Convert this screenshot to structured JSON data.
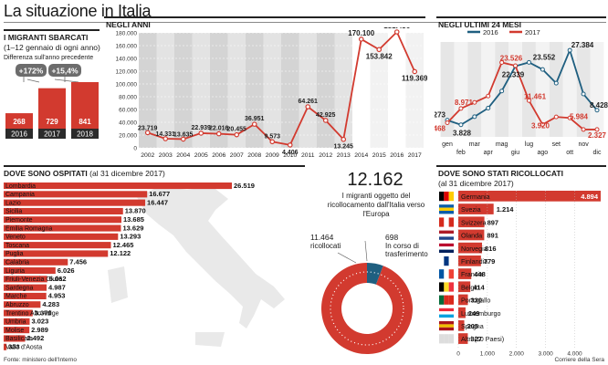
{
  "title": "La situazione in Italia",
  "sources": {
    "left": "Fonte: ministero dell'Interno",
    "right": "Corriere della Sera"
  },
  "colors": {
    "red": "#d23a2f",
    "blue": "#1f5f80",
    "grey": "#c8c8c8",
    "lightgrey": "#e9e9e9",
    "dark": "#2b2b2b"
  },
  "migranti": {
    "heading": "I MIGRANTI SBARCATI",
    "subheading": "(1–12 gennaio di ogni anno)",
    "diff_label": "Differenza sull'anno precedente",
    "diff_badges": [
      "+172%",
      "+15,4%"
    ]
  },
  "negli_anni": {
    "heading": "NEGLI ANNI"
  },
  "ultimi24": {
    "heading": "NEGLI ULTIMI 24 MESI"
  },
  "ospitati": {
    "heading": "DOVE SONO OSPITATI",
    "subheading": "(al 31 dicembre 2017)"
  },
  "ricollocamento": {
    "total": "12.162",
    "caption": "I migranti oggetto del ricollocamento dall'Italia verso l'Europa",
    "left_value": "11.464",
    "left_label": "ricollocati",
    "right_value": "698",
    "right_label": "In corso di trasferimento"
  },
  "ricollocati": {
    "heading": "DOVE SONO STATI RICOLLOCATI",
    "subheading": "(al 31 dicembre 2017)"
  },
  "chart_data": [
    {
      "type": "bar",
      "categories": [
        "2016",
        "2017",
        "2018"
      ],
      "values": [
        268,
        729,
        841
      ],
      "value_labels": [
        "268",
        "729",
        "841"
      ]
    },
    {
      "type": "line",
      "x": [
        "2002",
        "2003",
        "2004",
        "2005",
        "2006",
        "2007",
        "2008",
        "2009",
        "2010",
        "2011",
        "2012",
        "2013",
        "2014",
        "2015",
        "2016",
        "2017"
      ],
      "values": [
        23719,
        14331,
        13635,
        22939,
        22016,
        20455,
        36951,
        9573,
        4406,
        64261,
        42925,
        13245,
        170100,
        153842,
        181436,
        119369
      ],
      "value_labels": [
        "23.719",
        "14.331",
        "13.635",
        "22.939",
        "22.016",
        "20.455",
        "36.951",
        "9.573",
        "4.406",
        "64.261",
        "42.925",
        "13.245",
        "170.100",
        "153.842",
        "181.436",
        "119.369"
      ],
      "y_ticks": [
        "0",
        "20.000",
        "40.000",
        "60.000",
        "80.000",
        "100.000",
        "120.000",
        "140.000",
        "160.000",
        "180.000"
      ],
      "ylim": [
        0,
        180000
      ],
      "grid": true
    },
    {
      "type": "line",
      "categories": [
        "gen",
        "feb",
        "mar",
        "apr",
        "mag",
        "giu",
        "lug",
        "ago",
        "set",
        "ott",
        "nov",
        "dic"
      ],
      "series": [
        {
          "name": "2016",
          "color": "#1f5f80",
          "values": [
            5273,
            3828,
            6400,
            9100,
            14500,
            22339,
            23552,
            21300,
            16975,
            27384,
            13550,
            8428
          ]
        },
        {
          "name": "2017",
          "color": "#d23a2f",
          "values": [
            4468,
            8971,
            10900,
            12900,
            23526,
            22500,
            11461,
            3920,
            6300,
            5984,
            2327,
            2327
          ]
        }
      ],
      "value_labels": [
        "5.273",
        "4.468",
        "3.828",
        "8.971",
        "23.526",
        "22.339",
        "23.552",
        "11.461",
        "3.920",
        "27.384",
        "5.984",
        "8.428",
        "2.327"
      ]
    },
    {
      "type": "bar",
      "orientation": "horizontal",
      "categories": [
        "Lombardia",
        "Campania",
        "Lazio",
        "Sicilia",
        "Piemonte",
        "Emilia Romagna",
        "Veneto",
        "Toscana",
        "Puglia",
        "Calabria",
        "Liguria",
        "Friuli-Venezia Giulia",
        "Sardegna",
        "Marche",
        "Abruzzo",
        "Trentino Alto Adige",
        "Umbria",
        "Molise",
        "Basilicata",
        "Valle d'Aosta"
      ],
      "values": [
        26519,
        16677,
        16447,
        13870,
        13685,
        13629,
        13293,
        12465,
        12122,
        7456,
        6026,
        5062,
        4987,
        4953,
        4283,
        3370,
        3023,
        2989,
        2492,
        333
      ],
      "value_labels": [
        "26.519",
        "16.677",
        "16.447",
        "13.870",
        "13.685",
        "13.629",
        "13.293",
        "12.465",
        "12.122",
        "7.456",
        "6.026",
        "5.062",
        "4.987",
        "4.953",
        "4.283",
        "3.370",
        "3.023",
        "2.989",
        "2.492",
        "333"
      ]
    },
    {
      "type": "pie",
      "categories": [
        "ricollocati",
        "In corso di trasferimento"
      ],
      "values": [
        11464,
        698
      ]
    },
    {
      "type": "bar",
      "orientation": "horizontal",
      "categories": [
        "Germania",
        "Svezia",
        "Svizzera",
        "Olanda",
        "Norvegia",
        "Finlandia",
        "Francia",
        "Belgio",
        "Portogallo",
        "Lussemburgo",
        "Spagna",
        "Altri (10 Paesi)"
      ],
      "values": [
        4894,
        1214,
        897,
        891,
        816,
        779,
        448,
        414,
        330,
        249,
        205,
        327
      ],
      "value_labels": [
        "4.894",
        "1.214",
        "897",
        "891",
        "816",
        "779",
        "448",
        "414",
        "330",
        "249",
        "205",
        "327"
      ],
      "x_ticks": [
        "0",
        "1.000",
        "2.000",
        "3.000",
        "4.000"
      ],
      "xlim": [
        0,
        4000
      ]
    }
  ]
}
